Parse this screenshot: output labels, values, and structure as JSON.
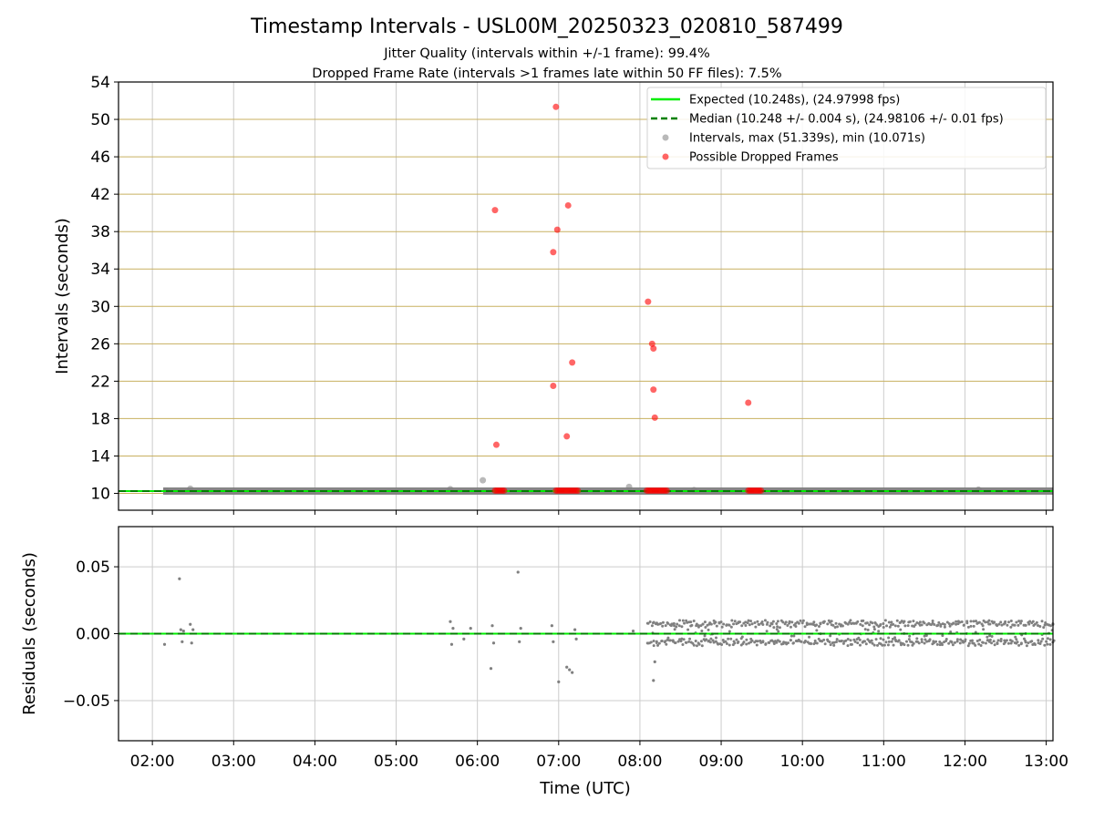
{
  "figure": {
    "title": "Timestamp Intervals - USL00M_20250323_020810_587499",
    "subtitle_1": "Jitter Quality (intervals within +/-1 frame): 99.4%",
    "subtitle_2": "Dropped Frame Rate (intervals >1 frames late within 50 FF files): 7.5%",
    "xlabel": "Time (UTC)"
  },
  "colors": {
    "expected": "#00ee00",
    "median": "#008000",
    "intervals": "#808080",
    "dropped": "#ff0000",
    "hgrid_top": "#c8b060",
    "grid": "#cccccc"
  },
  "chart_data": [
    {
      "type": "scatter",
      "ylabel": "Intervals (seconds)",
      "xlim": [
        "01:35",
        "13:05"
      ],
      "ylim": [
        8.2,
        54
      ],
      "xticks": [
        "02:00",
        "03:00",
        "04:00",
        "05:00",
        "06:00",
        "07:00",
        "08:00",
        "09:00",
        "10:00",
        "11:00",
        "12:00",
        "13:00"
      ],
      "yticks": [
        10,
        14,
        18,
        22,
        26,
        30,
        34,
        38,
        42,
        46,
        50,
        54
      ],
      "grid": true,
      "legend_position": "top-right",
      "legend": {
        "expected_label": "Expected (10.248s), (24.97998 fps)",
        "median_label": "Median (10.248 +/- 0.004 s), (24.98106 +/- 0.01 fps)",
        "intervals_label": "Intervals, max (51.339s), min (10.071s)",
        "dropped_label": "Possible Dropped Frames"
      },
      "expected_value": 10.248,
      "median_value": 10.248,
      "interval_band": {
        "start": "02:08",
        "end": "13:05",
        "value": 10.248
      },
      "interval_points": [
        {
          "x": "02:10",
          "y": 10.25
        },
        {
          "x": "02:28",
          "y": 10.5
        },
        {
          "x": "05:40",
          "y": 10.45
        },
        {
          "x": "06:04",
          "y": 11.4
        },
        {
          "x": "07:52",
          "y": 10.7
        },
        {
          "x": "08:40",
          "y": 10.35
        },
        {
          "x": "12:10",
          "y": 10.4
        }
      ],
      "dropped_points": [
        {
          "x": "06:13",
          "y": 40.3
        },
        {
          "x": "06:14",
          "y": 15.2
        },
        {
          "x": "06:56",
          "y": 21.5
        },
        {
          "x": "06:56",
          "y": 35.8
        },
        {
          "x": "06:58",
          "y": 51.339
        },
        {
          "x": "06:59",
          "y": 38.2
        },
        {
          "x": "07:06",
          "y": 16.1
        },
        {
          "x": "07:07",
          "y": 40.8
        },
        {
          "x": "07:10",
          "y": 24.0
        },
        {
          "x": "08:06",
          "y": 30.5
        },
        {
          "x": "08:09",
          "y": 26.0
        },
        {
          "x": "08:10",
          "y": 25.5
        },
        {
          "x": "08:10",
          "y": 21.1
        },
        {
          "x": "08:11",
          "y": 18.1
        },
        {
          "x": "09:20",
          "y": 19.7
        }
      ],
      "dropped_clusters": [
        {
          "start": "06:13",
          "end": "06:20",
          "y": 10.3
        },
        {
          "start": "06:58",
          "end": "07:15",
          "y": 10.3
        },
        {
          "start": "08:05",
          "end": "08:20",
          "y": 10.3
        },
        {
          "start": "09:20",
          "end": "09:30",
          "y": 10.3
        }
      ]
    },
    {
      "type": "scatter",
      "ylabel": "Residuals (seconds)",
      "xlim": [
        "01:35",
        "13:05"
      ],
      "ylim": [
        -0.08,
        0.08
      ],
      "xticks": [
        "02:00",
        "03:00",
        "04:00",
        "05:00",
        "06:00",
        "07:00",
        "08:00",
        "09:00",
        "10:00",
        "11:00",
        "12:00",
        "13:00"
      ],
      "yticks": [
        0.05,
        0.0,
        -0.05
      ],
      "ytick_labels": [
        "0.05",
        "0.00",
        "−0.05"
      ],
      "grid": true,
      "zero_value": 0.0,
      "residual_points": [
        {
          "x": "02:09",
          "y": -0.008
        },
        {
          "x": "02:20",
          "y": 0.041
        },
        {
          "x": "02:21",
          "y": 0.003
        },
        {
          "x": "02:22",
          "y": -0.006
        },
        {
          "x": "02:23",
          "y": 0.002
        },
        {
          "x": "02:28",
          "y": 0.007
        },
        {
          "x": "02:29",
          "y": -0.007
        },
        {
          "x": "02:30",
          "y": 0.003
        },
        {
          "x": "05:40",
          "y": 0.009
        },
        {
          "x": "05:41",
          "y": -0.008
        },
        {
          "x": "05:42",
          "y": 0.004
        },
        {
          "x": "05:50",
          "y": -0.004
        },
        {
          "x": "05:55",
          "y": 0.004
        },
        {
          "x": "06:10",
          "y": -0.026
        },
        {
          "x": "06:11",
          "y": 0.006
        },
        {
          "x": "06:12",
          "y": -0.007
        },
        {
          "x": "06:30",
          "y": 0.046
        },
        {
          "x": "06:31",
          "y": -0.006
        },
        {
          "x": "06:32",
          "y": 0.004
        },
        {
          "x": "06:55",
          "y": 0.006
        },
        {
          "x": "06:56",
          "y": -0.006
        },
        {
          "x": "07:00",
          "y": -0.036
        },
        {
          "x": "07:06",
          "y": -0.025
        },
        {
          "x": "07:08",
          "y": -0.027
        },
        {
          "x": "07:10",
          "y": -0.029
        },
        {
          "x": "07:12",
          "y": 0.003
        },
        {
          "x": "07:13",
          "y": -0.004
        },
        {
          "x": "07:55",
          "y": 0.002
        },
        {
          "x": "08:10",
          "y": -0.035
        },
        {
          "x": "08:11",
          "y": -0.021
        }
      ],
      "residual_band": {
        "start": "08:05",
        "end": "13:05",
        "upper": 0.008,
        "lower": -0.007
      }
    }
  ]
}
